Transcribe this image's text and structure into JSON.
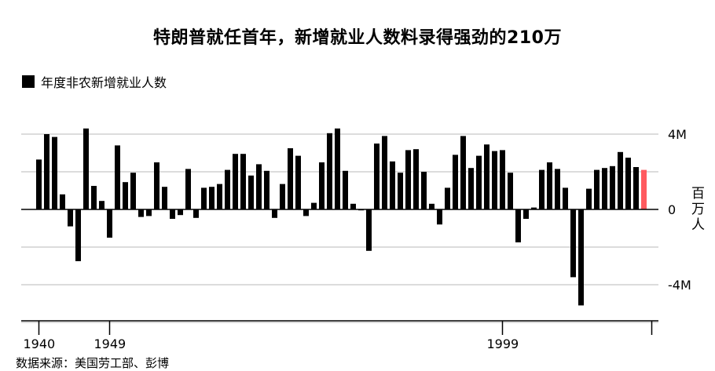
{
  "title": "特朗普就任首年，新增就业人数料录得强劲的210万",
  "legend": {
    "label": "年度非农新增就业人数"
  },
  "source": "数据来源：美国劳工部、彭博",
  "colors": {
    "bar": "#000000",
    "highlight": "#ff5a5f",
    "grid": "#d0d0d0"
  },
  "chart_data": {
    "type": "bar",
    "title": "特朗普就任首年，新增就业人数料录得强劲的210万",
    "ylabel": "百万人",
    "ylim": [
      -6,
      4
    ],
    "y_ticks": [
      {
        "value": 4,
        "label": "4M"
      },
      {
        "value": 0,
        "label": "0"
      },
      {
        "value": -4,
        "label": "-4M"
      }
    ],
    "x_tick_labels": [
      {
        "year": 1940,
        "label": "1940"
      },
      {
        "year": 1949,
        "label": "1949"
      },
      {
        "year": 1999,
        "label": "1999"
      }
    ],
    "x_ticks": [
      1940,
      1949,
      1999,
      2018
    ],
    "highlight_year": 2017,
    "categories": [
      1940,
      1941,
      1942,
      1943,
      1944,
      1945,
      1946,
      1947,
      1948,
      1949,
      1950,
      1951,
      1952,
      1953,
      1954,
      1955,
      1956,
      1957,
      1958,
      1959,
      1960,
      1961,
      1962,
      1963,
      1964,
      1965,
      1966,
      1967,
      1968,
      1969,
      1970,
      1971,
      1972,
      1973,
      1974,
      1975,
      1976,
      1977,
      1978,
      1979,
      1980,
      1981,
      1982,
      1983,
      1984,
      1985,
      1986,
      1987,
      1988,
      1989,
      1990,
      1991,
      1992,
      1993,
      1994,
      1995,
      1996,
      1997,
      1998,
      1999,
      2000,
      2001,
      2002,
      2003,
      2004,
      2005,
      2006,
      2007,
      2008,
      2009,
      2010,
      2011,
      2012,
      2013,
      2014,
      2015,
      2016,
      2017
    ],
    "series": [
      {
        "values": [
          2.65,
          4.0,
          3.85,
          0.8,
          -0.9,
          -2.75,
          4.3,
          1.25,
          0.45,
          -1.5,
          3.4,
          1.45,
          1.95,
          -0.4,
          -0.35,
          2.5,
          1.2,
          -0.5,
          -0.3,
          2.15,
          -0.45,
          1.15,
          1.2,
          1.35,
          2.1,
          2.95,
          2.95,
          1.8,
          2.4,
          2.05,
          -0.45,
          1.35,
          3.25,
          2.85,
          -0.35,
          0.35,
          2.5,
          4.05,
          4.3,
          2.05,
          0.3,
          -0.05,
          -2.2,
          3.5,
          3.9,
          2.55,
          1.95,
          3.15,
          3.2,
          2.0,
          0.3,
          -0.8,
          1.15,
          2.9,
          3.9,
          2.2,
          2.85,
          3.45,
          3.1,
          3.15,
          1.95,
          -1.75,
          -0.5,
          0.1,
          2.1,
          2.5,
          2.15,
          1.15,
          -3.6,
          -5.1,
          1.1,
          2.1,
          2.2,
          2.3,
          3.05,
          2.75,
          2.25,
          2.1
        ]
      }
    ]
  }
}
